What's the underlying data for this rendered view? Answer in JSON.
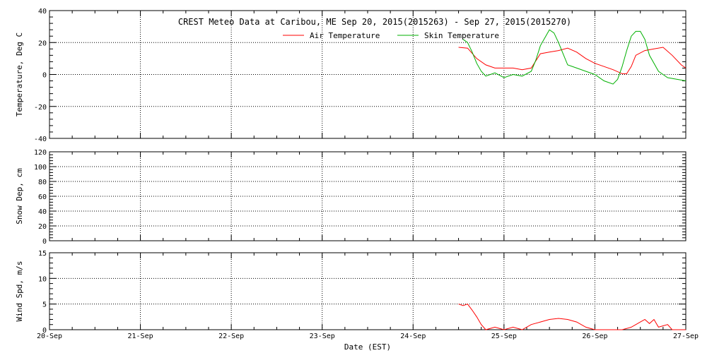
{
  "chart_data": {
    "title": "CREST Meteo Data at Caribou, ME   Sep 20, 2015(2015263) - Sep 27, 2015(2015270)",
    "xlabel": "Date (EST)",
    "x_ticks": [
      "20-Sep",
      "21-Sep",
      "22-Sep",
      "23-Sep",
      "24-Sep",
      "25-Sep",
      "26-Sep",
      "27-Sep"
    ],
    "x_range_days": [
      0,
      7
    ],
    "grid": true,
    "panels": [
      {
        "type": "line",
        "ylabel": "Temperature, Deg C",
        "ylim": [
          -40,
          40
        ],
        "y_ticks": [
          -40,
          -20,
          0,
          20,
          40
        ],
        "legend": "top-center",
        "series": [
          {
            "name": "Air Temperature",
            "color": "#ff0000",
            "points": [
              [
                4.5,
                17
              ],
              [
                4.6,
                16.5
              ],
              [
                4.7,
                10
              ],
              [
                4.8,
                6
              ],
              [
                4.9,
                4
              ],
              [
                5.0,
                4
              ],
              [
                5.1,
                4
              ],
              [
                5.2,
                3
              ],
              [
                5.3,
                4
              ],
              [
                5.4,
                13
              ],
              [
                5.5,
                14
              ],
              [
                5.6,
                15
              ],
              [
                5.7,
                16.5
              ],
              [
                5.8,
                14
              ],
              [
                5.9,
                10
              ],
              [
                6.0,
                7
              ],
              [
                6.1,
                5
              ],
              [
                6.2,
                3
              ],
              [
                6.3,
                0.5
              ],
              [
                6.35,
                0.5
              ],
              [
                6.4,
                5
              ],
              [
                6.45,
                12
              ],
              [
                6.55,
                15
              ],
              [
                6.65,
                16
              ],
              [
                6.75,
                17
              ],
              [
                6.85,
                12
              ],
              [
                6.95,
                6
              ],
              [
                7.0,
                4
              ]
            ]
          },
          {
            "name": "Skin Temperature",
            "color": "#00b000",
            "points": [
              [
                4.55,
                22
              ],
              [
                4.6,
                20
              ],
              [
                4.65,
                14
              ],
              [
                4.7,
                7
              ],
              [
                4.75,
                2
              ],
              [
                4.8,
                -1
              ],
              [
                4.9,
                1
              ],
              [
                5.0,
                -2
              ],
              [
                5.1,
                0
              ],
              [
                5.2,
                -1
              ],
              [
                5.3,
                2
              ],
              [
                5.35,
                9
              ],
              [
                5.4,
                18
              ],
              [
                5.45,
                23
              ],
              [
                5.5,
                28
              ],
              [
                5.55,
                26
              ],
              [
                5.6,
                20
              ],
              [
                5.65,
                13
              ],
              [
                5.7,
                6
              ],
              [
                5.8,
                4
              ],
              [
                5.9,
                2
              ],
              [
                6.0,
                0
              ],
              [
                6.1,
                -4
              ],
              [
                6.2,
                -6
              ],
              [
                6.25,
                -3
              ],
              [
                6.3,
                5
              ],
              [
                6.35,
                15
              ],
              [
                6.4,
                24
              ],
              [
                6.45,
                27
              ],
              [
                6.5,
                27
              ],
              [
                6.55,
                22
              ],
              [
                6.6,
                12
              ],
              [
                6.7,
                2
              ],
              [
                6.8,
                -2
              ],
              [
                6.9,
                -3
              ],
              [
                7.0,
                -4
              ]
            ]
          }
        ]
      },
      {
        "type": "line",
        "ylabel": "Snow Dep, cm",
        "ylim": [
          0,
          120
        ],
        "y_ticks": [
          0,
          20,
          40,
          60,
          80,
          100,
          120
        ],
        "series": []
      },
      {
        "type": "line",
        "ylabel": "Wind Spd, m/s",
        "ylim": [
          0,
          15
        ],
        "y_ticks": [
          0,
          5,
          10,
          15
        ],
        "series": [
          {
            "name": "Wind Speed",
            "color": "#ff0000",
            "points": [
              [
                4.5,
                5
              ],
              [
                4.55,
                4.7
              ],
              [
                4.6,
                5
              ],
              [
                4.65,
                3.8
              ],
              [
                4.7,
                2.5
              ],
              [
                4.75,
                1
              ],
              [
                4.8,
                0
              ],
              [
                4.9,
                0.5
              ],
              [
                5.0,
                0
              ],
              [
                5.1,
                0.5
              ],
              [
                5.2,
                0
              ],
              [
                5.3,
                1
              ],
              [
                5.4,
                1.5
              ],
              [
                5.5,
                2
              ],
              [
                5.6,
                2.2
              ],
              [
                5.7,
                2
              ],
              [
                5.8,
                1.5
              ],
              [
                5.9,
                0.5
              ],
              [
                6.0,
                0
              ],
              [
                6.1,
                0
              ],
              [
                6.2,
                0
              ],
              [
                6.3,
                0
              ],
              [
                6.4,
                0.5
              ],
              [
                6.5,
                1.5
              ],
              [
                6.55,
                2
              ],
              [
                6.6,
                1.2
              ],
              [
                6.65,
                2
              ],
              [
                6.7,
                0.5
              ],
              [
                6.8,
                1
              ],
              [
                6.85,
                0
              ],
              [
                7.0,
                0
              ]
            ]
          }
        ]
      }
    ]
  }
}
